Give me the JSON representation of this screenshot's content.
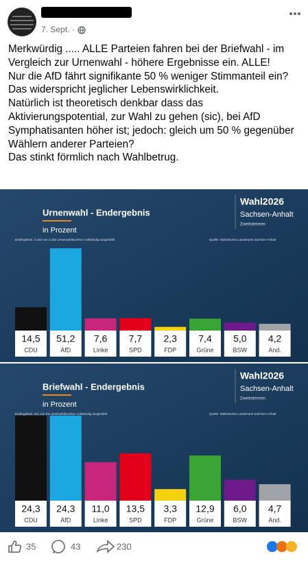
{
  "post": {
    "date": "7. Sept. ·",
    "paragraphs": [
      "Merkwürdig ..... ALLE Parteien fahren bei der Briefwahl - im Vergleich zur Urnenwahl - höhere Ergebnisse ein. ALLE!",
      "Nur die AfD fährt signifikante 50 % weniger Stimmanteil ein?",
      "Das widerspricht jeglicher Lebenswirklichkeit.",
      "Natürlich ist theoretisch denkbar dass das Aktivierungspotential, zur Wahl zu gehen (sic), bei AfD Symphatisanten höher ist; jedoch: gleich um 50 % gegenüber Wählern anderer Parteien?",
      "Das stinkt förmlich nach Wahlbetrug."
    ]
  },
  "chart_data": [
    {
      "type": "bar",
      "title": "Urnenwahl - Endergebnis",
      "subtitle": "in Prozent",
      "brand": "Wahl2026",
      "region": "Sachsen-Anhalt",
      "vote_type": "Zweitstimmen",
      "note": "Endergebnis: 2.150 von 2.150 Urnenwahlbezirken vollständig ausgezählt",
      "source": "Quelle: Statistisches Landesamt Sachsen-Anhalt",
      "categories": [
        "CDU",
        "AfD",
        "Linke",
        "SPD",
        "FDP",
        "Grüne",
        "BSW",
        "And."
      ],
      "values": [
        14.5,
        51.2,
        7.6,
        7.7,
        2.3,
        7.4,
        5.0,
        4.2
      ],
      "value_labels": [
        "14,5",
        "51,2",
        "7,6",
        "7,7",
        "2,3",
        "7,4",
        "5,0",
        "4,2"
      ],
      "colors": [
        "#111111",
        "#1ba7e0",
        "#c8267c",
        "#e3001b",
        "#f5d20f",
        "#3aa535",
        "#6f1a8a",
        "#a0a4a8"
      ]
    },
    {
      "type": "bar",
      "title": "Briefwahl - Endergebnis",
      "subtitle": "in Prozent",
      "brand": "Wahl2026",
      "region": "Sachsen-Anhalt",
      "vote_type": "Zweitstimmen",
      "note": "Endergebnis: 511 von 511 Briefwahlbezirken vollständig ausgezählt",
      "source": "Quelle: Statistisches Landesamt Sachsen-Anhalt",
      "categories": [
        "CDU",
        "AfD",
        "Linke",
        "SPD",
        "FDP",
        "Grüne",
        "BSW",
        "And."
      ],
      "values": [
        24.3,
        24.3,
        11.0,
        13.5,
        3.3,
        12.9,
        6.0,
        4.7
      ],
      "value_labels": [
        "24,3",
        "24,3",
        "11,0",
        "13,5",
        "3,3",
        "12,9",
        "6,0",
        "4,7"
      ],
      "colors": [
        "#111111",
        "#1ba7e0",
        "#c8267c",
        "#e3001b",
        "#f5d20f",
        "#3aa535",
        "#6f1a8a",
        "#a0a4a8"
      ]
    }
  ],
  "footer": {
    "likes": "35",
    "comments": "43",
    "shares": "230"
  }
}
